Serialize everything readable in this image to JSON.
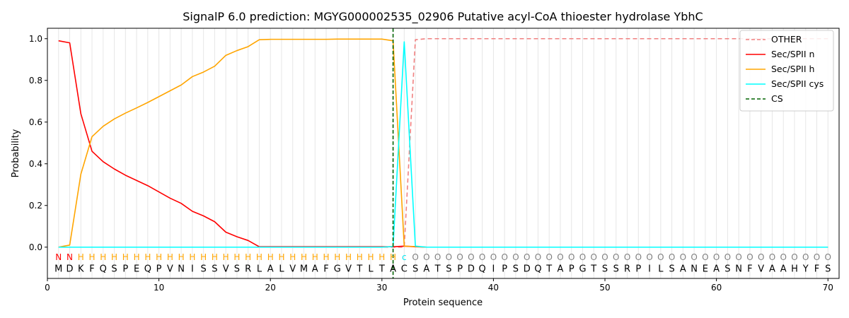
{
  "chart_data": {
    "type": "line",
    "title": "SignalP 6.0 prediction: MGYG000002535_02906 Putative acyl-CoA thioester hydrolase YbhC",
    "xlabel": "Protein sequence",
    "ylabel": "Probability",
    "xlim": [
      0,
      71
    ],
    "ylim": [
      -0.15,
      1.05
    ],
    "x_ticks": [
      0,
      10,
      20,
      30,
      40,
      50,
      60,
      70
    ],
    "y_ticks": [
      0.0,
      0.2,
      0.4,
      0.6,
      0.8,
      1.0
    ],
    "x_tick_labels": [
      "0",
      "10",
      "20",
      "30",
      "40",
      "50",
      "60",
      "70"
    ],
    "y_tick_labels": [
      "0.0",
      "0.2",
      "0.4",
      "0.6",
      "0.8",
      "1.0"
    ],
    "sequence": [
      "M",
      "D",
      "K",
      "F",
      "Q",
      "S",
      "P",
      "E",
      "Q",
      "P",
      "V",
      "N",
      "I",
      "S",
      "S",
      "V",
      "S",
      "R",
      "L",
      "A",
      "L",
      "V",
      "M",
      "A",
      "F",
      "G",
      "V",
      "T",
      "L",
      "T",
      "A",
      "C",
      "S",
      "A",
      "T",
      "S",
      "P",
      "D",
      "Q",
      "I",
      "P",
      "S",
      "D",
      "Q",
      "T",
      "A",
      "P",
      "G",
      "T",
      "S",
      "S",
      "R",
      "P",
      "I",
      "L",
      "S",
      "A",
      "N",
      "E",
      "A",
      "S",
      "N",
      "F",
      "V",
      "A",
      "A",
      "H",
      "Y",
      "F",
      "S"
    ],
    "region_labels": [
      "N",
      "N",
      "H",
      "H",
      "H",
      "H",
      "H",
      "H",
      "H",
      "H",
      "H",
      "H",
      "H",
      "H",
      "H",
      "H",
      "H",
      "H",
      "H",
      "H",
      "H",
      "H",
      "H",
      "H",
      "H",
      "H",
      "H",
      "H",
      "H",
      "H",
      "H",
      "C",
      "O",
      "O",
      "O",
      "O",
      "O",
      "O",
      "O",
      "O",
      "O",
      "O",
      "O",
      "O",
      "O",
      "O",
      "O",
      "O",
      "O",
      "O",
      "O",
      "O",
      "O",
      "O",
      "O",
      "O",
      "O",
      "O",
      "O",
      "O",
      "O",
      "O",
      "O",
      "O",
      "O",
      "O",
      "O",
      "O",
      "O",
      "O"
    ],
    "region_colors": {
      "N": "#ff0000",
      "H": "#ffa500",
      "C": "#00e5ee",
      "O": "#808080"
    },
    "series": [
      {
        "name": "OTHER",
        "color": "#f08080",
        "style": "dashed",
        "values": [
          0,
          0,
          0,
          0,
          0,
          0,
          0,
          0,
          0,
          0,
          0,
          0,
          0,
          0,
          0,
          0,
          0,
          0,
          0,
          0,
          0,
          0,
          0,
          0,
          0,
          0,
          0,
          0,
          0,
          0,
          0,
          0,
          0.995,
          1,
          1,
          1,
          1,
          1,
          1,
          1,
          1,
          1,
          1,
          1,
          1,
          1,
          1,
          1,
          1,
          1,
          1,
          1,
          1,
          1,
          1,
          1,
          1,
          1,
          1,
          1,
          1,
          1,
          1,
          1,
          1,
          1,
          1,
          1,
          1,
          1
        ]
      },
      {
        "name": "Sec/SPII n",
        "color": "#ff0000",
        "style": "solid",
        "values": [
          0.99,
          0.98,
          0.64,
          0.46,
          0.41,
          0.375,
          0.345,
          0.32,
          0.295,
          0.265,
          0.235,
          0.21,
          0.172,
          0.15,
          0.122,
          0.072,
          0.05,
          0.032,
          0.002,
          0.002,
          0.002,
          0.002,
          0.002,
          0.002,
          0.002,
          0.002,
          0.002,
          0.002,
          0.002,
          0.002,
          0.002,
          0.005,
          0.002,
          0,
          0,
          0,
          0,
          0,
          0,
          0,
          0,
          0,
          0,
          0,
          0,
          0,
          0,
          0,
          0,
          0,
          0,
          0,
          0,
          0,
          0,
          0,
          0,
          0,
          0,
          0,
          0,
          0,
          0,
          0,
          0,
          0,
          0,
          0,
          0,
          0
        ]
      },
      {
        "name": "Sec/SPII h",
        "color": "#ffa500",
        "style": "solid",
        "values": [
          0,
          0.01,
          0.35,
          0.53,
          0.58,
          0.615,
          0.643,
          0.668,
          0.694,
          0.722,
          0.75,
          0.778,
          0.818,
          0.84,
          0.868,
          0.92,
          0.943,
          0.962,
          0.995,
          0.997,
          0.997,
          0.997,
          0.997,
          0.997,
          0.997,
          0.998,
          0.998,
          0.998,
          0.998,
          0.998,
          0.99,
          0.005,
          0.003,
          0,
          0,
          0,
          0,
          0,
          0,
          0,
          0,
          0,
          0,
          0,
          0,
          0,
          0,
          0,
          0,
          0,
          0,
          0,
          0,
          0,
          0,
          0,
          0,
          0,
          0,
          0,
          0,
          0,
          0,
          0,
          0,
          0,
          0,
          0,
          0,
          0
        ]
      },
      {
        "name": "Sec/SPII cys",
        "color": "#00ffff",
        "style": "solid",
        "values": [
          0,
          0,
          0,
          0,
          0,
          0,
          0,
          0,
          0,
          0,
          0,
          0,
          0,
          0,
          0,
          0,
          0,
          0,
          0,
          0,
          0,
          0,
          0,
          0,
          0,
          0,
          0,
          0,
          0,
          0,
          0.003,
          0.985,
          0.005,
          0,
          0,
          0,
          0,
          0,
          0,
          0,
          0,
          0,
          0,
          0,
          0,
          0,
          0,
          0,
          0,
          0,
          0,
          0,
          0,
          0,
          0,
          0,
          0,
          0,
          0,
          0,
          0,
          0,
          0,
          0,
          0,
          0,
          0,
          0,
          0,
          0
        ]
      },
      {
        "name": "CS",
        "color": "#006400",
        "style": "dashed",
        "vline_x": 31
      }
    ],
    "legend": "top-right",
    "grid": "vertical at each residue"
  }
}
